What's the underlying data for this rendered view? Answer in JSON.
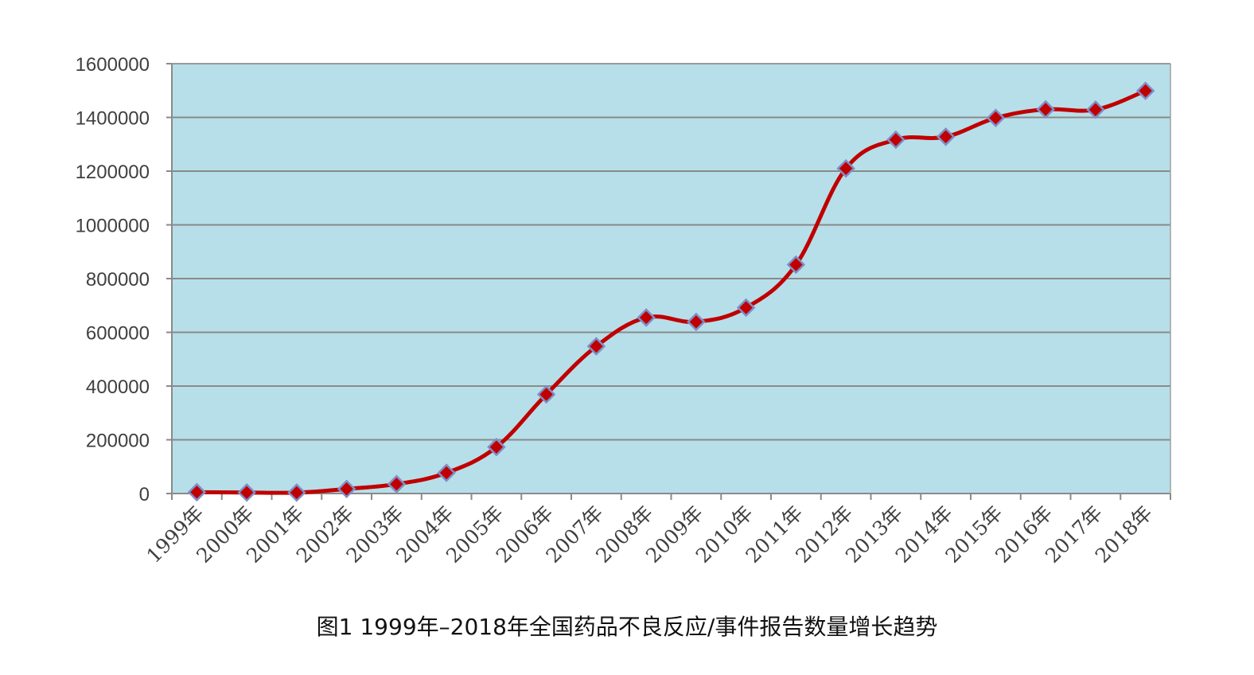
{
  "chart_data": {
    "type": "line",
    "title": "",
    "caption": "图1 1999年–2018年全国药品不良反应/事件报告数量增长趋势",
    "categories": [
      "1999年",
      "2000年",
      "2001年",
      "2002年",
      "2003年",
      "2004年",
      "2005年",
      "2006年",
      "2007年",
      "2008年",
      "2009年",
      "2010年",
      "2011年",
      "2012年",
      "2013年",
      "2014年",
      "2015年",
      "2016年",
      "2017年",
      "2018年"
    ],
    "series": [
      {
        "values": [
          5000,
          3800,
          3300,
          17000,
          35000,
          77000,
          173000,
          369000,
          548000,
          655000,
          639000,
          692000,
          852000,
          1210000,
          1317000,
          1328000,
          1398000,
          1430000,
          1429000,
          1499000
        ]
      }
    ],
    "ylim": [
      0,
      1600000
    ],
    "yticks": [
      "0",
      "200000",
      "400000",
      "600000",
      "800000",
      "1000000",
      "1200000",
      "1400000",
      "1600000"
    ],
    "grid": true,
    "legend": "none",
    "colors": {
      "plot_background": "#b7dfe9",
      "line": "#c00000",
      "marker_fill": "#c00000",
      "marker_edge": "#7f8fc8",
      "grid": "#8a8a8a"
    }
  }
}
